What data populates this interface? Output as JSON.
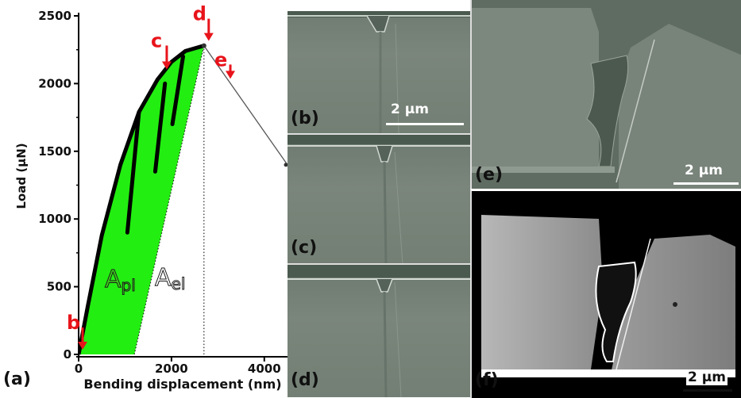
{
  "chart_data": {
    "type": "line",
    "xlabel": "Bending displacement (nm)",
    "ylabel": "Load (μN)",
    "xlim": [
      0,
      4500
    ],
    "ylim": [
      0,
      2500
    ],
    "x_ticks": [
      "0",
      "2000",
      "4000"
    ],
    "y_ticks": [
      "0",
      "500",
      "1000",
      "1500",
      "2000",
      "2500"
    ],
    "series": [
      {
        "values": [
          [
            0,
            0
          ],
          [
            200,
            360
          ],
          [
            500,
            880
          ],
          [
            900,
            1400
          ],
          [
            1300,
            1790
          ],
          [
            1700,
            2030
          ],
          [
            2000,
            2160
          ],
          [
            2300,
            2240
          ],
          [
            2550,
            2265
          ],
          [
            2700,
            2280
          ]
        ]
      },
      {
        "values": [
          [
            2700,
            2280
          ],
          [
            4500,
            1400
          ]
        ]
      }
    ],
    "unloading_lines": [
      {
        "x": [
          1050,
          1300
        ],
        "y": [
          900,
          1790
        ]
      },
      {
        "x": [
          1650,
          1860
        ],
        "y": [
          1350,
          2000
        ]
      },
      {
        "x": [
          2020,
          2250
        ],
        "y": [
          1700,
          2200
        ]
      }
    ],
    "elastic_line": {
      "x": [
        1200,
        2700
      ],
      "y": [
        0,
        2280
      ]
    },
    "peak_vertical_x": 2700,
    "markers": [
      {
        "label": "b",
        "x": 0,
        "y": 0
      },
      {
        "label": "c",
        "x": 1830,
        "y": 2070
      },
      {
        "label": "d",
        "x": 2700,
        "y": 2280
      },
      {
        "label": "e",
        "x": 3200,
        "y": 2000
      }
    ],
    "region_labels": {
      "plastic": {
        "main": "A",
        "sub": "pl"
      },
      "elastic": {
        "main": "A",
        "sub": "el"
      }
    },
    "fill_color": "#22ee11",
    "arrow_color": "#e8141b"
  },
  "panels": {
    "a": "(a)",
    "b": "(b)",
    "c": "(c)",
    "d": "(d)",
    "e": "(e)",
    "f": "(f)"
  },
  "scale_bar_text": "2 μm"
}
